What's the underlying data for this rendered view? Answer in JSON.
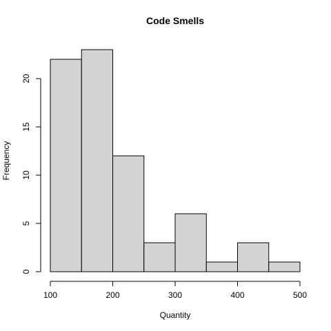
{
  "chart_data": {
    "type": "bar",
    "title": "Code Smells",
    "xlabel": "Quantity",
    "ylabel": "Frequency",
    "bins": [
      [
        100,
        150
      ],
      [
        150,
        200
      ],
      [
        200,
        250
      ],
      [
        250,
        300
      ],
      [
        300,
        350
      ],
      [
        350,
        400
      ],
      [
        400,
        450
      ],
      [
        450,
        500
      ]
    ],
    "values": [
      22,
      23,
      12,
      3,
      6,
      1,
      3,
      1
    ],
    "xlim": [
      100,
      500
    ],
    "ylim": [
      0,
      23
    ],
    "x_ticks": [
      100,
      200,
      300,
      400,
      500
    ],
    "y_ticks": [
      0,
      5,
      10,
      15,
      20
    ],
    "grid": false,
    "colors": {
      "bar_fill": "#d3d3d3",
      "bar_stroke": "#000000"
    }
  }
}
